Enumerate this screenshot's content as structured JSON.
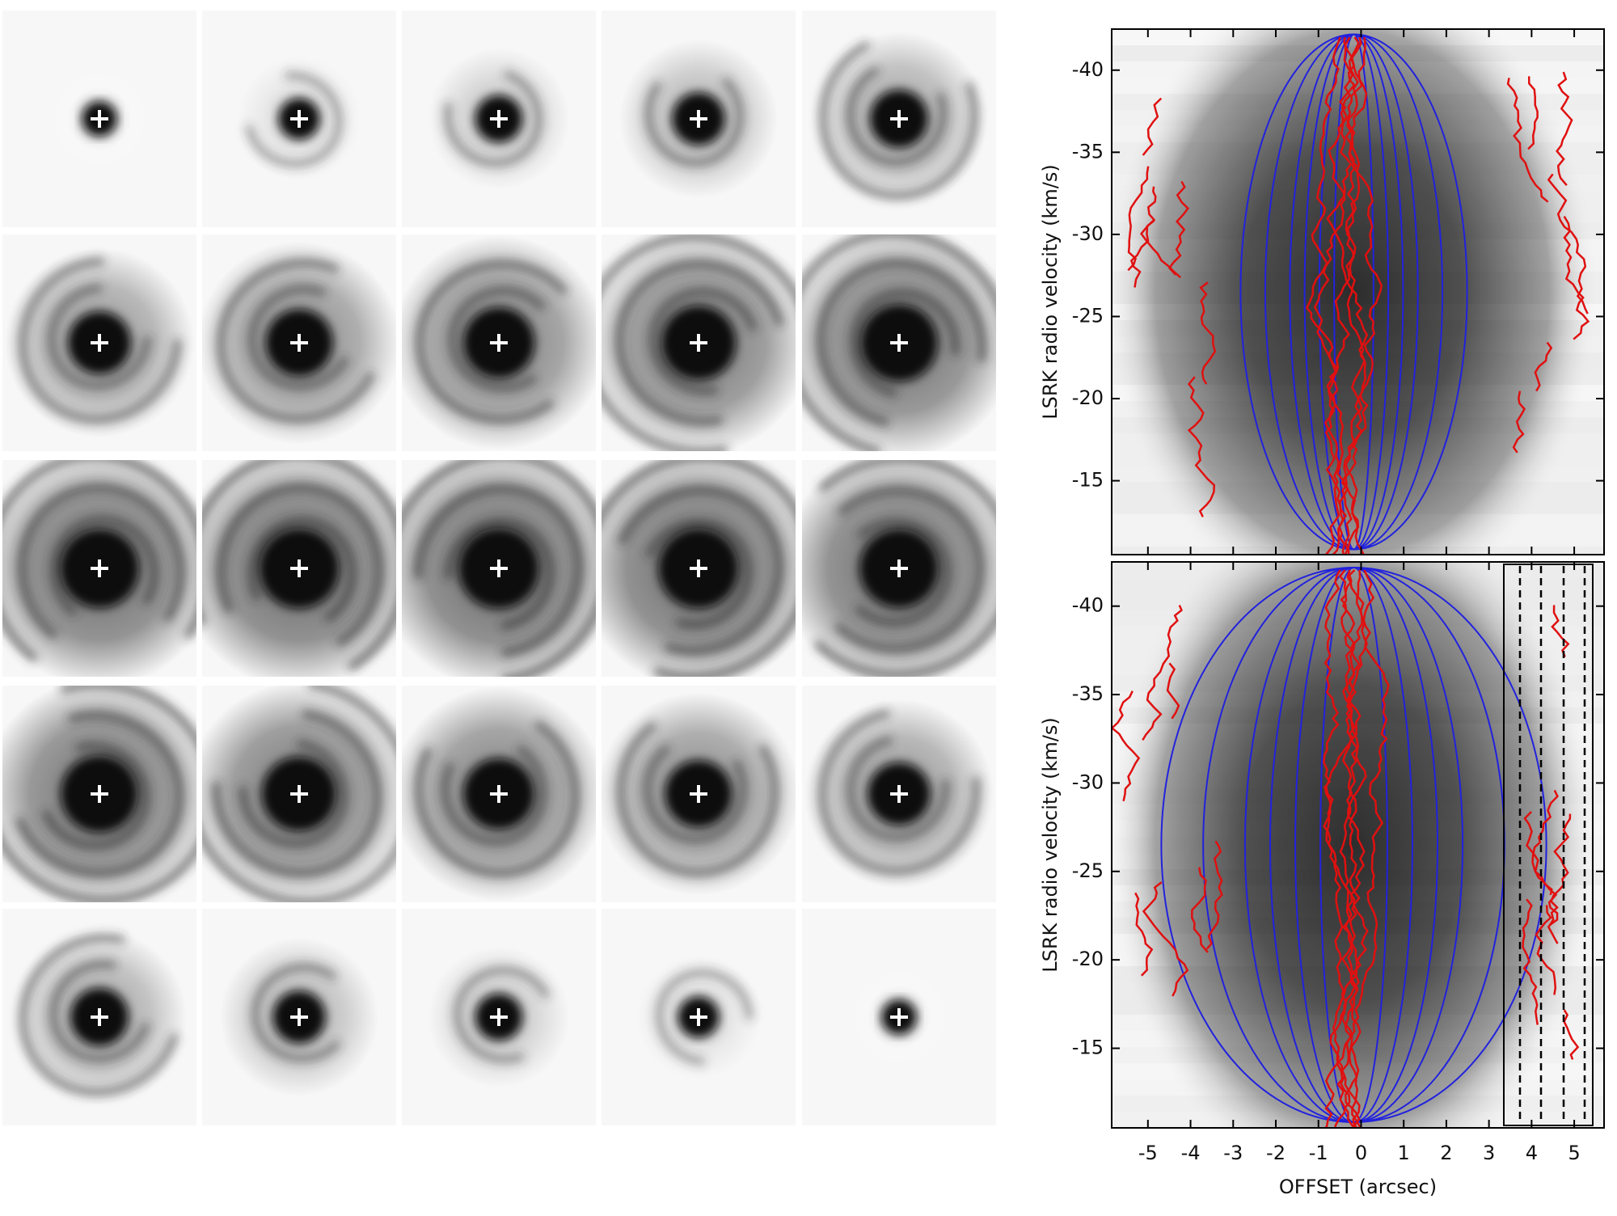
{
  "chart_data": [
    {
      "type": "image",
      "ylabel": "LSRK radio velocity  (km/s)",
      "xlim": [
        -5.85,
        5.7
      ],
      "xticks": [
        -5,
        -4,
        -3,
        -2,
        -1,
        0,
        1,
        2,
        3,
        4,
        5
      ],
      "xtick_labels": false,
      "ylim": [
        -42.5,
        -10.5
      ],
      "yticks": [
        -40,
        -35,
        -30,
        -25,
        -20,
        -15
      ],
      "y_inverted": true
    },
    {
      "type": "image",
      "ylabel": "LSRK radio velocity  (km/s)",
      "xlabel": "OFFSET (arcsec)",
      "xlim": [
        -5.85,
        5.7
      ],
      "xticks": [
        -5,
        -4,
        -3,
        -2,
        -1,
        0,
        1,
        2,
        3,
        4,
        5
      ],
      "xtick_labels": true,
      "ylim": [
        -42.5,
        -10.5
      ],
      "yticks": [
        -40,
        -35,
        -30,
        -25,
        -20,
        -15
      ],
      "y_inverted": true
    }
  ]
}
